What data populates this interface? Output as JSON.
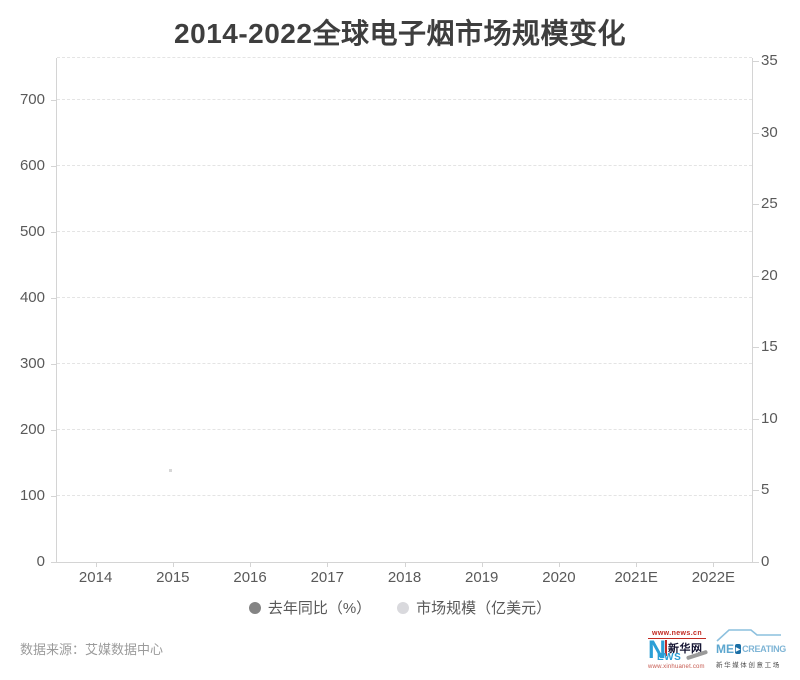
{
  "title": "2014-2022全球电子烟市场规模变化",
  "source": "数据来源：艾媒数据中心",
  "chart_data": {
    "type": "bar",
    "title": "2014-2022全球电子烟市场规模变化",
    "categories": [
      "2014",
      "2015",
      "2016",
      "2017",
      "2018",
      "2019",
      "2020",
      "2021E",
      "2022E"
    ],
    "series": [
      {
        "name": "去年同比（%）",
        "marker_color": "#848484",
        "axis": "right",
        "values": []
      },
      {
        "name": "市场规模（亿美元）",
        "marker_color": "#d9d9dd",
        "axis": "left",
        "values": []
      }
    ],
    "left_axis": {
      "ticks": [
        0,
        100,
        200,
        300,
        400,
        500,
        600,
        700
      ],
      "range": [
        0,
        760
      ]
    },
    "right_axis": {
      "ticks": [
        0,
        5,
        10,
        15,
        20,
        25,
        30,
        35
      ],
      "range": [
        0,
        35
      ]
    },
    "grid": "dashed horizontal gridlines",
    "legend_position": "bottom"
  },
  "logos": {
    "xinhua": {
      "url_top": "www.news.cn",
      "n": "N",
      "name": "新华网",
      "ews": "EWS",
      "url_bottom": "www.xinhuanet.com"
    },
    "medcreating": {
      "me": "ME",
      "play": "▶",
      "creating": "CREATING",
      "subtitle": "新华媒体创意工场"
    }
  }
}
